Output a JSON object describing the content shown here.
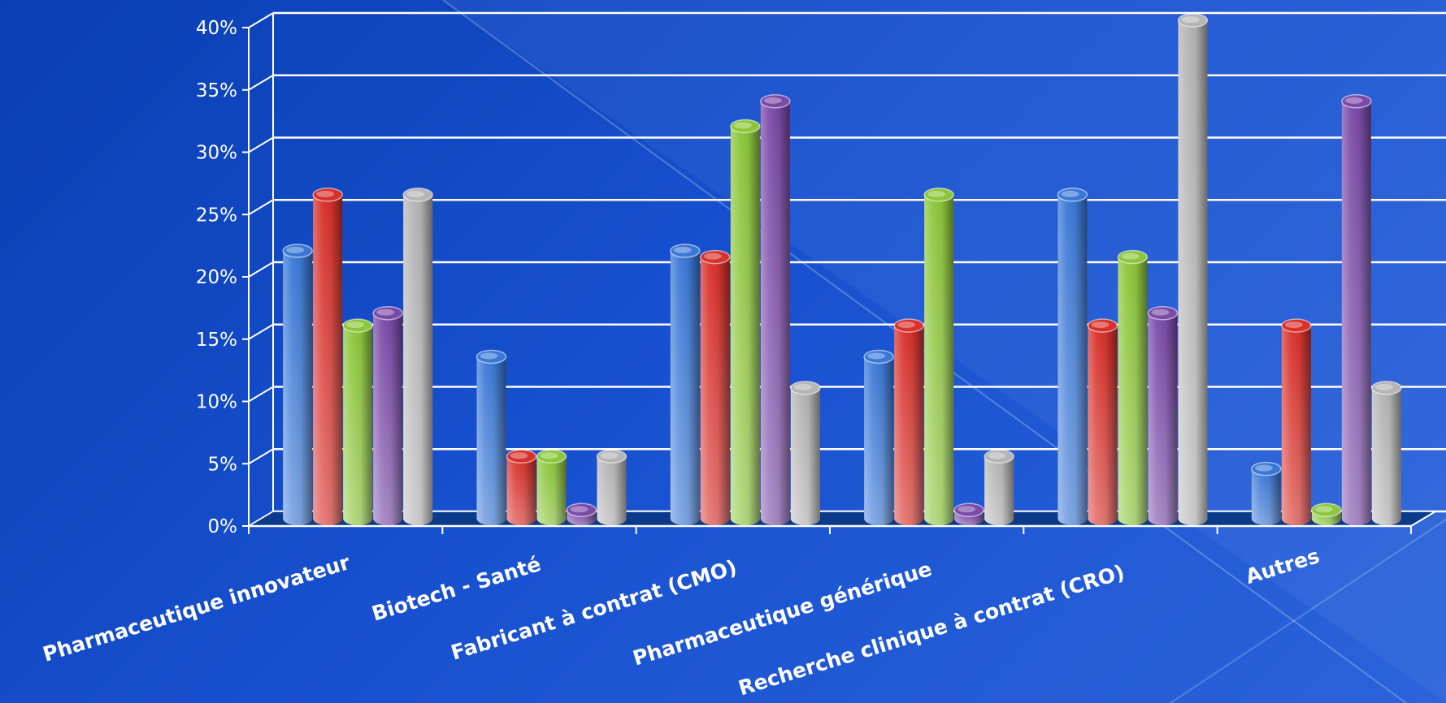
{
  "chart_data": {
    "type": "bar",
    "title": "",
    "xlabel": "",
    "ylabel": "",
    "categories": [
      "Pharmaceutique innovateur",
      "Biotech - Santé",
      "Fabricant à contrat (CMO)",
      "Pharmaceutique générique",
      "Recherche clinique à contrat (CRO)",
      "Autres"
    ],
    "series": [
      {
        "color": "#3a78d6",
        "values": [
          21.5,
          13.0,
          21.5,
          13.0,
          26.0,
          4.0
        ]
      },
      {
        "color": "#d8302a",
        "values": [
          26.0,
          5.0,
          21.0,
          15.5,
          15.5,
          15.5
        ]
      },
      {
        "color": "#8cc63a",
        "values": [
          15.5,
          5.0,
          31.5,
          26.0,
          21.0,
          0.7
        ]
      },
      {
        "color": "#7a4aa8",
        "values": [
          16.5,
          0.7,
          33.5,
          0.7,
          16.5,
          33.5
        ]
      },
      {
        "color": "#b5b5b5",
        "values": [
          26.0,
          5.0,
          10.5,
          5.0,
          40.0,
          10.5
        ]
      }
    ],
    "y_tick_labels": [
      "0%",
      "5%",
      "10%",
      "15%",
      "20%",
      "25%",
      "30%",
      "35%",
      "40%"
    ],
    "ylim": [
      0,
      40
    ],
    "grid": true,
    "style": "3D cylinders",
    "legend": "none"
  }
}
